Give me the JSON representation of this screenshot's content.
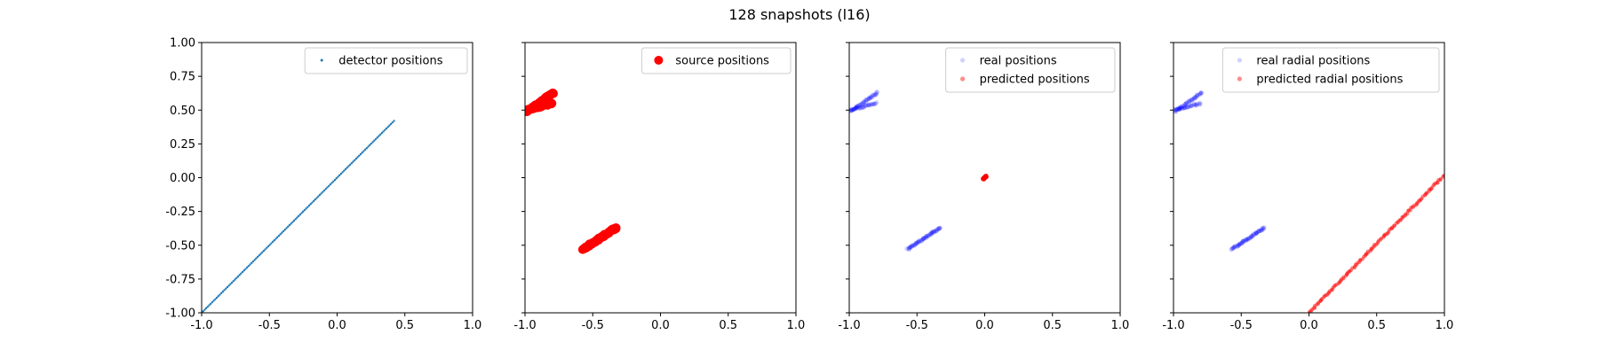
{
  "figure": {
    "suptitle": "128 snapshots (l16)"
  },
  "chart_data": [
    {
      "type": "scatter",
      "xlim": [
        -1.0,
        1.0
      ],
      "ylim": [
        -1.0,
        1.0
      ],
      "x_ticks": [
        "-1.0",
        "-0.5",
        "0.0",
        "0.5",
        "1.0"
      ],
      "y_ticks": [
        "-1.00",
        "-0.75",
        "-0.50",
        "-0.25",
        "0.00",
        "0.25",
        "0.50",
        "0.75",
        "1.00"
      ],
      "show_y_tick_labels": true,
      "legend_position": "upper right",
      "series": [
        {
          "name": "detector positions",
          "color": "#1f77b4",
          "marker": "small-dot",
          "opacity": 1.0,
          "x_from": -1.0,
          "x_to": 0.42,
          "y_from": -1.0,
          "y_to": 0.42,
          "count": 128
        }
      ]
    },
    {
      "type": "scatter",
      "xlim": [
        -1.0,
        1.0
      ],
      "ylim": [
        -1.0,
        1.0
      ],
      "x_ticks": [
        "-1.0",
        "-0.5",
        "0.0",
        "0.5",
        "1.0"
      ],
      "y_ticks": [
        "-1.00",
        "-0.75",
        "-0.50",
        "-0.25",
        "0.00",
        "0.25",
        "0.50",
        "0.75",
        "1.00"
      ],
      "show_y_tick_labels": false,
      "legend_position": "upper right",
      "series": [
        {
          "name": "source positions",
          "color": "#ff0000",
          "marker": "large-dot",
          "opacity": 1.0,
          "clusters": [
            {
              "x_from": -0.99,
              "x_to": -0.79,
              "y_from": 0.49,
              "y_to": 0.63,
              "count": 40
            },
            {
              "x_from": -0.99,
              "x_to": -0.8,
              "y_from": 0.5,
              "y_to": 0.55,
              "count": 30
            },
            {
              "x_from": -0.57,
              "x_to": -0.33,
              "y_from": -0.53,
              "y_to": -0.37,
              "count": 58
            }
          ]
        }
      ]
    },
    {
      "type": "scatter",
      "xlim": [
        -1.0,
        1.0
      ],
      "ylim": [
        -1.0,
        1.0
      ],
      "x_ticks": [
        "-1.0",
        "-0.5",
        "0.0",
        "0.5",
        "1.0"
      ],
      "y_ticks": [
        "-1.00",
        "-0.75",
        "-0.50",
        "-0.25",
        "0.00",
        "0.25",
        "0.50",
        "0.75",
        "1.00"
      ],
      "show_y_tick_labels": false,
      "legend_position": "upper right",
      "series": [
        {
          "name": "real positions",
          "color": "#0000ff",
          "marker": "faint-dot",
          "opacity": 0.18,
          "clusters": [
            {
              "x_from": -0.99,
              "x_to": -0.79,
              "y_from": 0.49,
              "y_to": 0.63,
              "count": 40
            },
            {
              "x_from": -0.99,
              "x_to": -0.8,
              "y_from": 0.5,
              "y_to": 0.55,
              "count": 30
            },
            {
              "x_from": -0.57,
              "x_to": -0.33,
              "y_from": -0.53,
              "y_to": -0.37,
              "count": 58
            }
          ]
        },
        {
          "name": "predicted positions",
          "color": "#ff0000",
          "marker": "point",
          "opacity": 0.45,
          "clusters": [
            {
              "x_from": -0.01,
              "x_to": 0.01,
              "y_from": -0.01,
              "y_to": 0.01,
              "count": 128
            }
          ]
        }
      ]
    },
    {
      "type": "scatter",
      "xlim": [
        -1.0,
        1.0
      ],
      "ylim": [
        -1.0,
        1.0
      ],
      "x_ticks": [
        "-1.0",
        "-0.5",
        "0.0",
        "0.5",
        "1.0"
      ],
      "y_ticks": [
        "-1.00",
        "-0.75",
        "-0.50",
        "-0.25",
        "0.00",
        "0.25",
        "0.50",
        "0.75",
        "1.00"
      ],
      "show_y_tick_labels": false,
      "legend_position": "upper right",
      "series": [
        {
          "name": "real radial positions",
          "color": "#0000ff",
          "marker": "faint-dot",
          "opacity": 0.18,
          "clusters": [
            {
              "x_from": -0.99,
              "x_to": -0.79,
              "y_from": 0.49,
              "y_to": 0.63,
              "count": 40
            },
            {
              "x_from": -0.99,
              "x_to": -0.8,
              "y_from": 0.5,
              "y_to": 0.55,
              "count": 30
            },
            {
              "x_from": -0.57,
              "x_to": -0.33,
              "y_from": -0.53,
              "y_to": -0.37,
              "count": 58
            }
          ]
        },
        {
          "name": "predicted radial positions",
          "color": "#ff0000",
          "marker": "point",
          "opacity": 0.45,
          "clusters": [
            {
              "x_from": 0.0,
              "x_to": 1.0,
              "y_from": -1.0,
              "y_to": 0.02,
              "count": 128
            }
          ]
        }
      ]
    }
  ]
}
